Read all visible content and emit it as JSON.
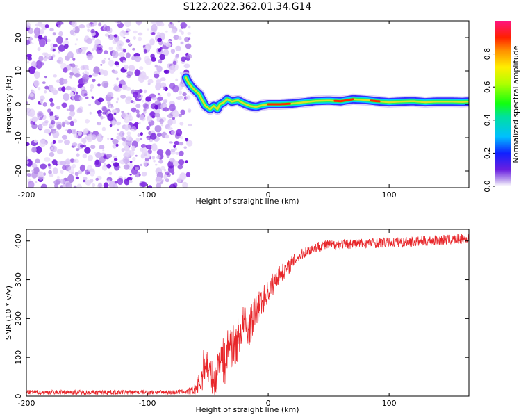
{
  "figure_title": "S122.2022.362.01.34.G14",
  "colors": {
    "snr_line": "#e8262a",
    "speckle": "#7a1fe0",
    "frame": "#000000"
  },
  "chart_data": [
    {
      "type": "heatmap",
      "id": "spectrogram",
      "title": "",
      "xlabel": "Height of straight line (km)",
      "ylabel": "Frequency (Hz)",
      "xlim": [
        -200,
        166
      ],
      "ylim": [
        -25,
        25
      ],
      "xticks": [
        -200,
        -100,
        0,
        100
      ],
      "yticks": [
        -20,
        -10,
        0,
        10,
        20
      ],
      "noise_region_x": [
        -200,
        -68
      ],
      "ridge": {
        "x": [
          -68,
          -66,
          -63,
          -60,
          -57,
          -55,
          -52,
          -48,
          -45,
          -42,
          -40,
          -37,
          -34,
          -30,
          -25,
          -20,
          -15,
          -10,
          -5,
          0,
          10,
          20,
          30,
          40,
          50,
          60,
          70,
          80,
          90,
          100,
          110,
          120,
          130,
          140,
          150,
          160,
          166
        ],
        "y": [
          8,
          6.5,
          5,
          4,
          3,
          1.5,
          -0.5,
          -1.5,
          -0.5,
          -1.5,
          0,
          0.5,
          1.5,
          0.8,
          1.2,
          0.2,
          -0.5,
          -0.8,
          -0.3,
          0,
          0,
          0.2,
          0.6,
          1,
          1.1,
          0.9,
          1.5,
          1.3,
          0.9,
          0.6,
          0.8,
          0.9,
          0.6,
          0.8,
          0.8,
          0.7,
          0.8
        ]
      },
      "colorbar": {
        "label": "Normalized spectral amplitude",
        "ticks": [
          "0.0",
          "0.2",
          "0.4",
          "0.6",
          "0.8"
        ],
        "range": [
          0,
          1
        ]
      }
    },
    {
      "type": "line",
      "id": "snr",
      "title": "",
      "xlabel": "Height of straight line (km)",
      "ylabel": "SNR (10 * v/v)",
      "xlim": [
        -200,
        166
      ],
      "ylim": [
        0,
        430
      ],
      "xticks": [
        -200,
        -100,
        0,
        100
      ],
      "yticks": [
        0,
        100,
        200,
        300,
        400
      ],
      "series": [
        {
          "name": "SNR",
          "x": [
            -200,
            -180,
            -160,
            -140,
            -120,
            -100,
            -80,
            -70,
            -62,
            -56,
            -52,
            -48,
            -44,
            -40,
            -36,
            -32,
            -28,
            -24,
            -20,
            -16,
            -12,
            -8,
            -4,
            0,
            4,
            8,
            12,
            16,
            20,
            25,
            30,
            40,
            50,
            60,
            70,
            80,
            90,
            100,
            110,
            120,
            130,
            140,
            150,
            160,
            166
          ],
          "values": [
            10,
            10,
            10,
            10,
            10,
            10,
            10,
            11,
            14,
            35,
            95,
            55,
            40,
            110,
            80,
            140,
            120,
            160,
            190,
            170,
            210,
            230,
            250,
            270,
            290,
            310,
            320,
            330,
            345,
            360,
            370,
            385,
            390,
            392,
            393,
            394,
            395,
            396,
            397,
            398,
            400,
            402,
            403,
            405,
            406
          ],
          "noise_amplitude": [
            6,
            6,
            6,
            6,
            6,
            6,
            6,
            6,
            12,
            35,
            55,
            40,
            45,
            60,
            60,
            60,
            60,
            55,
            50,
            45,
            45,
            40,
            35,
            30,
            30,
            25,
            22,
            20,
            18,
            15,
            14,
            14,
            13,
            13,
            13,
            13,
            13,
            13,
            13,
            13,
            13,
            13,
            13,
            13,
            13
          ]
        }
      ]
    }
  ]
}
